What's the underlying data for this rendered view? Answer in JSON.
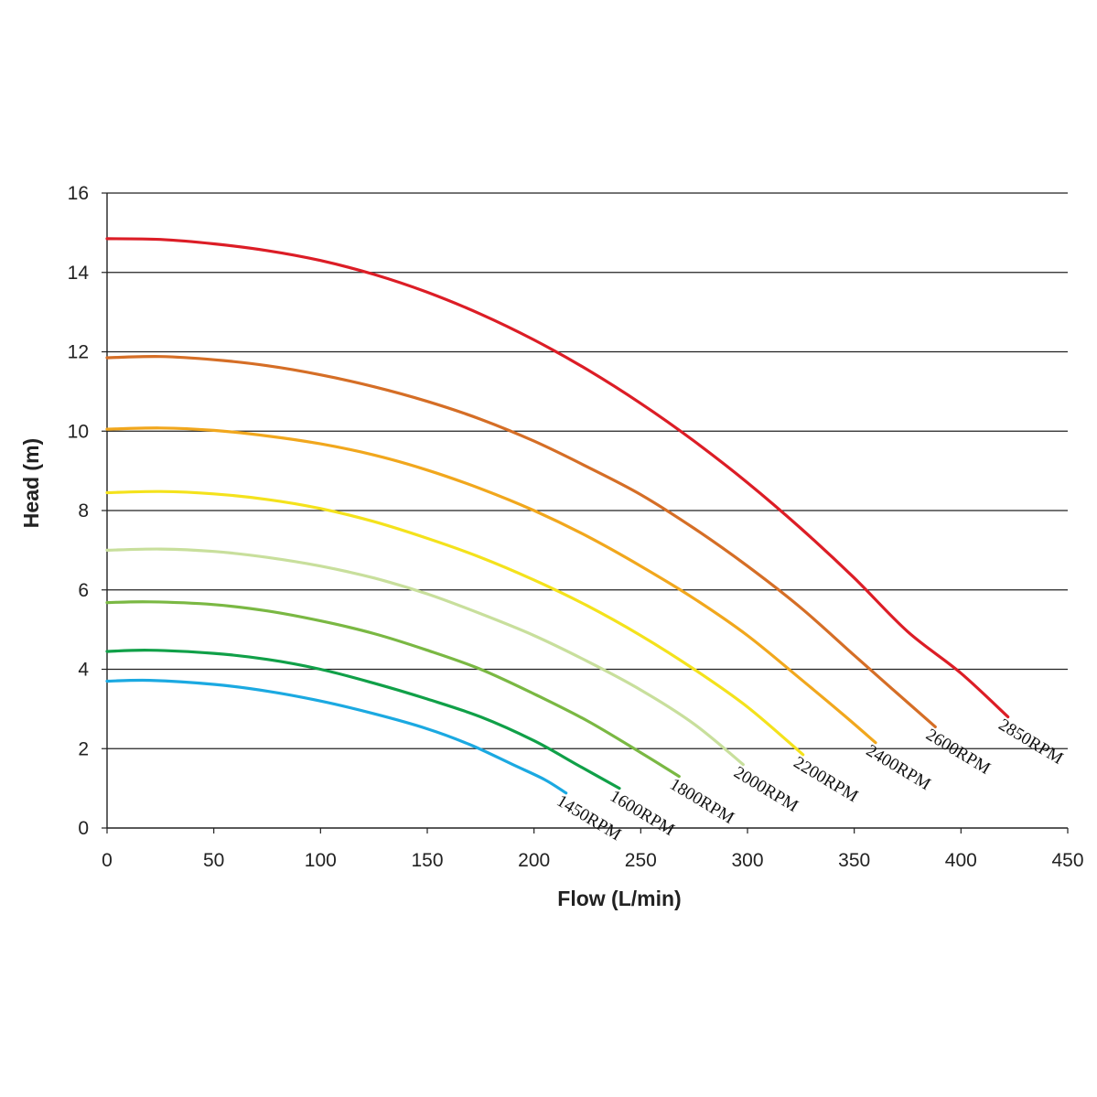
{
  "chart_data": {
    "type": "line",
    "title": "",
    "xlabel": "Flow  (L/min)",
    "ylabel": "Head (m)",
    "xlim": [
      0,
      450
    ],
    "ylim": [
      0,
      16
    ],
    "x_ticks": [
      "0",
      "50",
      "100",
      "150",
      "200",
      "250",
      "300",
      "350",
      "400",
      "450"
    ],
    "y_ticks": [
      "0",
      "2",
      "4",
      "6",
      "8",
      "10",
      "12",
      "14",
      "16"
    ],
    "grid": "horizontal",
    "series": [
      {
        "name": "1450RPM",
        "color": "#1ba9e1",
        "x": [
          0,
          20,
          50,
          75,
          100,
          125,
          150,
          170,
          190,
          205,
          215
        ],
        "y": [
          3.7,
          3.72,
          3.62,
          3.45,
          3.2,
          2.88,
          2.5,
          2.1,
          1.6,
          1.22,
          0.88
        ]
      },
      {
        "name": "1600RPM",
        "color": "#10a048",
        "x": [
          0,
          20,
          50,
          75,
          100,
          125,
          150,
          175,
          200,
          220,
          240
        ],
        "y": [
          4.45,
          4.48,
          4.4,
          4.25,
          4.0,
          3.65,
          3.25,
          2.8,
          2.2,
          1.6,
          1.0
        ]
      },
      {
        "name": "1800RPM",
        "color": "#7ab843",
        "x": [
          0,
          20,
          50,
          75,
          100,
          125,
          150,
          175,
          200,
          225,
          250,
          268
        ],
        "y": [
          5.68,
          5.7,
          5.63,
          5.47,
          5.22,
          4.9,
          4.48,
          4.0,
          3.38,
          2.7,
          1.9,
          1.3
        ]
      },
      {
        "name": "2000RPM",
        "color": "#c8df9c",
        "x": [
          0,
          25,
          50,
          75,
          100,
          125,
          150,
          175,
          200,
          225,
          250,
          275,
          298
        ],
        "y": [
          7.0,
          7.03,
          6.97,
          6.82,
          6.6,
          6.3,
          5.9,
          5.4,
          4.85,
          4.2,
          3.48,
          2.62,
          1.6
        ]
      },
      {
        "name": "2200RPM",
        "color": "#f4e21c",
        "x": [
          0,
          25,
          50,
          75,
          100,
          125,
          150,
          175,
          200,
          225,
          250,
          275,
          300,
          326
        ],
        "y": [
          8.45,
          8.48,
          8.42,
          8.28,
          8.05,
          7.72,
          7.3,
          6.82,
          6.25,
          5.6,
          4.85,
          4.0,
          3.05,
          1.85
        ]
      },
      {
        "name": "2400RPM",
        "color": "#f1a71d",
        "x": [
          0,
          25,
          50,
          75,
          100,
          125,
          150,
          175,
          200,
          225,
          250,
          275,
          300,
          325,
          345,
          360
        ],
        "y": [
          10.05,
          10.08,
          10.02,
          9.88,
          9.68,
          9.4,
          9.02,
          8.55,
          8.0,
          7.35,
          6.6,
          5.78,
          4.85,
          3.75,
          2.85,
          2.15
        ]
      },
      {
        "name": "2600RPM",
        "color": "#d56e26",
        "x": [
          0,
          25,
          50,
          75,
          100,
          125,
          150,
          175,
          200,
          225,
          250,
          275,
          300,
          325,
          350,
          370,
          388
        ],
        "y": [
          11.85,
          11.88,
          11.8,
          11.65,
          11.42,
          11.12,
          10.75,
          10.3,
          9.75,
          9.1,
          8.4,
          7.55,
          6.6,
          5.55,
          4.35,
          3.4,
          2.55
        ]
      },
      {
        "name": "2850RPM",
        "color": "#dc1d26",
        "x": [
          0,
          25,
          50,
          75,
          100,
          125,
          150,
          175,
          200,
          225,
          250,
          275,
          300,
          325,
          350,
          375,
          400,
          422
        ],
        "y": [
          14.85,
          14.83,
          14.72,
          14.55,
          14.3,
          13.95,
          13.5,
          12.95,
          12.3,
          11.55,
          10.7,
          9.75,
          8.7,
          7.55,
          6.3,
          4.95,
          3.9,
          2.8
        ]
      }
    ],
    "labels": [
      {
        "text": "1450RPM",
        "series": "1450RPM"
      },
      {
        "text": "1600RPM",
        "series": "1600RPM"
      },
      {
        "text": "1800RPM",
        "series": "1800RPM"
      },
      {
        "text": "2000RPM",
        "series": "2000RPM"
      },
      {
        "text": "2200RPM",
        "series": "2200RPM"
      },
      {
        "text": "2400RPM",
        "series": "2400RPM"
      },
      {
        "text": "2600RPM",
        "series": "2600RPM"
      },
      {
        "text": "2850RPM",
        "series": "2850RPM"
      }
    ]
  }
}
